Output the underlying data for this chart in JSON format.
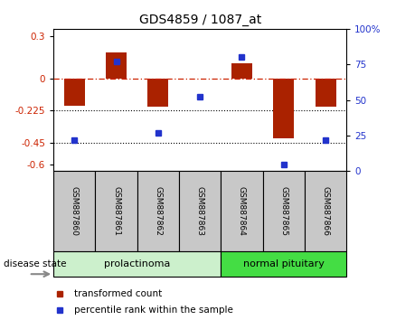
{
  "title": "GDS4859 / 1087_at",
  "samples": [
    "GSM887860",
    "GSM887861",
    "GSM887862",
    "GSM887863",
    "GSM887864",
    "GSM887865",
    "GSM887866"
  ],
  "bar_values": [
    -0.19,
    0.185,
    -0.195,
    0.0,
    0.105,
    -0.42,
    -0.195
  ],
  "dot_values": [
    22,
    77,
    27,
    52,
    80,
    5,
    22
  ],
  "ylim_left": [
    -0.65,
    0.35
  ],
  "ylim_right": [
    0,
    100
  ],
  "yticks_left": [
    0.3,
    0,
    -0.225,
    -0.45,
    -0.6
  ],
  "yticks_right": [
    100,
    75,
    50,
    25,
    0
  ],
  "hlines_dotted": [
    -0.225,
    -0.45
  ],
  "bar_color": "#aa2200",
  "dot_color": "#2233cc",
  "group_labels": [
    "prolactinoma",
    "normal pituitary"
  ],
  "group_split": 4,
  "group_colors": [
    "#ccf0cc",
    "#44dd44"
  ],
  "disease_label": "disease state",
  "legend_items": [
    "transformed count",
    "percentile rank within the sample"
  ],
  "bg_color": "#ffffff"
}
